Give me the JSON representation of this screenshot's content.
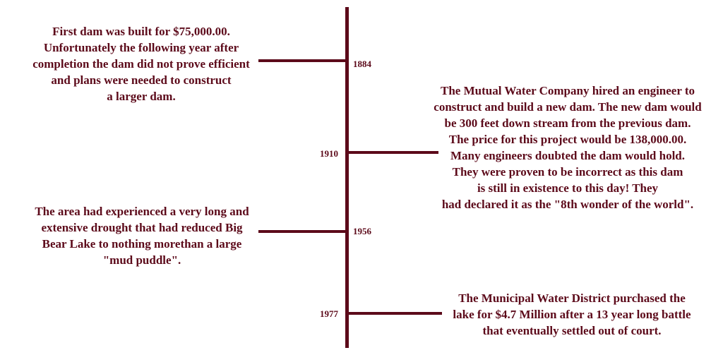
{
  "events": [
    {
      "year": "1884",
      "text": "First dam was built for $75,000.00.\nUnfortunately the following year after\ncompletion the dam did not prove efficient\nand plans were needed to construct\na larger dam."
    },
    {
      "year": "1910",
      "text": "The Mutual Water Company hired an engineer to\nconstruct and build a new dam. The new dam would\nbe 300 feet down stream from the previous dam.\nThe price for this project would be 138,000.00.\nMany engineers doubted the dam would hold.\nThey were proven to be  incorrect as this dam\nis still in existence to this day! They\nhad declared it as the \"8th wonder of the world\"."
    },
    {
      "year": "1956",
      "text": "The area had experienced a very long and\nextensive drought that had reduced Big\nBear Lake to nothing morethan a large\n\"mud puddle\"."
    },
    {
      "year": "1977",
      "text": "The Municipal Water District purchased the\nlake for $4.7 Million after a 13 year long battle\nthat eventually settled out of court."
    }
  ],
  "colors": {
    "line": "#5c0a1a",
    "text": "#5c0a1a"
  }
}
